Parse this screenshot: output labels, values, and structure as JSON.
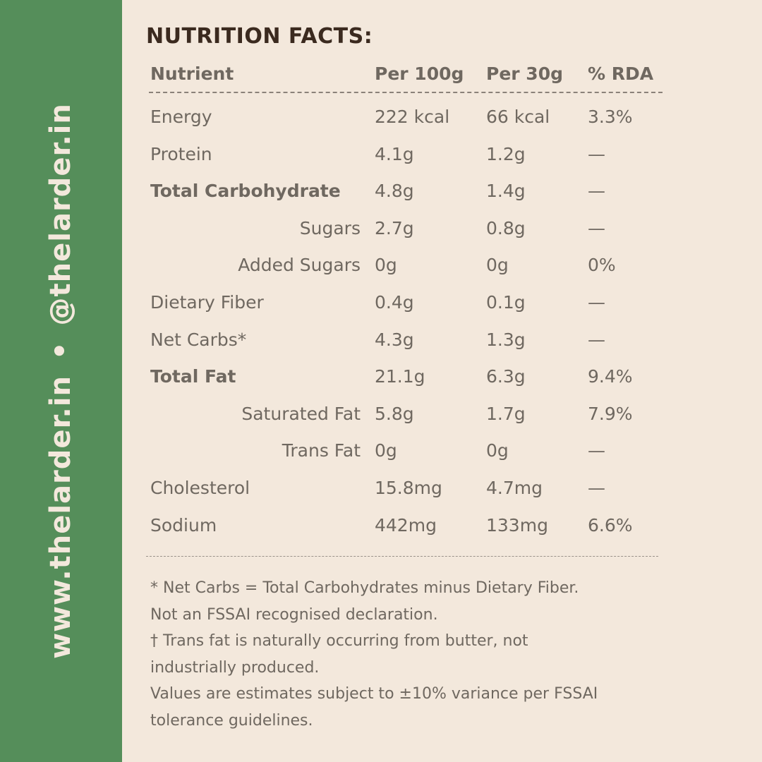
{
  "sidebar": {
    "website": "www.thelarder.in",
    "separator": "•",
    "handle": "@thelarder.in"
  },
  "title": "NUTRITION FACTS:",
  "table": {
    "headers": {
      "nutrient": "Nutrient",
      "per100": "Per 100g",
      "per30": "Per 30g",
      "rda": "% RDA"
    },
    "rows": [
      {
        "name": "Energy",
        "per100": "222 kcal",
        "per30": "66 kcal",
        "rda": "3.3%"
      },
      {
        "name": "Protein",
        "per100": "4.1g",
        "per30": "1.2g",
        "rda": "—"
      },
      {
        "name": "Total Carbohydrate",
        "per100": "4.8g",
        "per30": "1.4g",
        "rda": "—"
      },
      {
        "name": "Sugars",
        "per100": "2.7g",
        "per30": "0.8g",
        "rda": "—"
      },
      {
        "name": "Added Sugars",
        "per100": "0g",
        "per30": "0g",
        "rda": "0%"
      },
      {
        "name": "Dietary Fiber",
        "per100": "0.4g",
        "per30": "0.1g",
        "rda": "—"
      },
      {
        "name": "Net Carbs*",
        "per100": "4.3g",
        "per30": "1.3g",
        "rda": "—"
      },
      {
        "name": "Total Fat",
        "per100": "21.1g",
        "per30": "6.3g",
        "rda": "9.4%"
      },
      {
        "name": "Saturated Fat",
        "per100": "5.8g",
        "per30": "1.7g",
        "rda": "7.9%"
      },
      {
        "name": "Trans Fat",
        "per100": "0g",
        "per30": "0g",
        "rda": "—"
      },
      {
        "name": "Cholesterol",
        "per100": "15.8mg",
        "per30": "4.7mg",
        "rda": "—"
      },
      {
        "name": "Sodium",
        "per100": "442mg",
        "per30": "133mg",
        "rda": "6.6%"
      }
    ]
  },
  "notes": [
    "* Net Carbs = Total Carbohydrates minus Dietary Fiber.",
    "Not an FSSAI recognised declaration.",
    "† Trans fat is naturally occurring from butter, not",
    "industrially produced.",
    "Values are estimates subject to ±10% variance per FSSAI",
    "tolerance guidelines."
  ],
  "colors": {
    "sidebar": "#558e5a",
    "background": "#f3e8dc",
    "title": "#3b2a1f",
    "text": "#6f6860"
  }
}
